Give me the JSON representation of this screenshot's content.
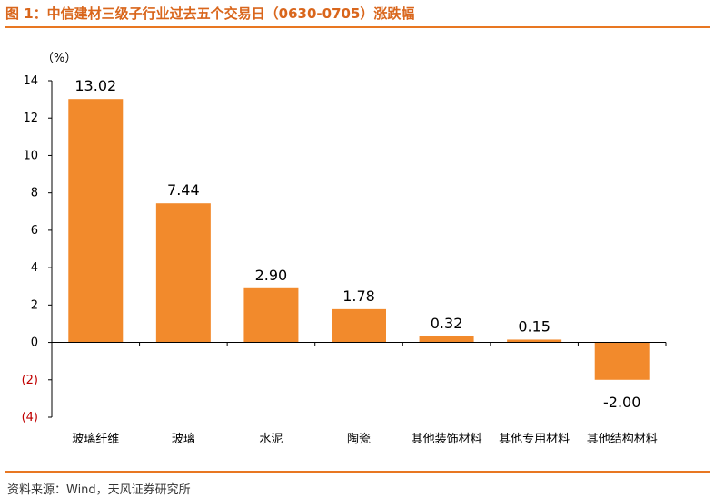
{
  "header": {
    "title": "图 1：中信建材三级子行业过去五个交易日（0630-0705）涨跌幅"
  },
  "footer": {
    "source": "资料来源：Wind，天风证券研究所"
  },
  "colors": {
    "accent": "#e87722",
    "bar": "#f28a2c",
    "negative_tick": "#c00000"
  },
  "chart_data": {
    "type": "bar",
    "title": "图 1：中信建材三级子行业过去五个交易日（0630-0705）涨跌幅",
    "ylabel": "（%）",
    "xlabel": "",
    "categories": [
      "玻璃纤维",
      "玻璃",
      "水泥",
      "陶瓷",
      "其他装饰材料",
      "其他专用材料",
      "其他结构材料"
    ],
    "values": [
      13.02,
      7.44,
      2.9,
      1.78,
      0.32,
      0.15,
      -2.0
    ],
    "data_labels": [
      "13.02",
      "7.44",
      "2.90",
      "1.78",
      "0.32",
      "0.15",
      "-2.00"
    ],
    "ylim": [
      -4,
      14
    ],
    "yticks": [
      14,
      12,
      10,
      8,
      6,
      4,
      2,
      0,
      -2,
      -4
    ],
    "ytick_labels": [
      "14",
      "12",
      "10",
      "8",
      "6",
      "4",
      "2",
      "0",
      "(2)",
      "(4)"
    ],
    "grid": false,
    "legend": "none"
  }
}
